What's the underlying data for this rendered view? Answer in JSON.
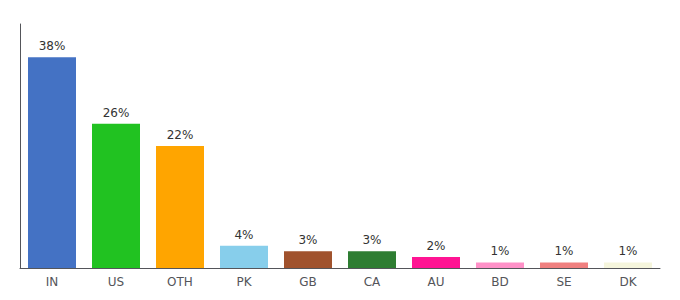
{
  "chart_data": {
    "type": "bar",
    "categories": [
      "IN",
      "US",
      "OTH",
      "PK",
      "GB",
      "CA",
      "AU",
      "BD",
      "SE",
      "DK"
    ],
    "values": [
      38,
      26,
      22,
      4,
      3,
      3,
      2,
      1,
      1,
      1
    ],
    "value_labels": [
      "38%",
      "26%",
      "22%",
      "4%",
      "3%",
      "3%",
      "2%",
      "1%",
      "1%",
      "1%"
    ],
    "colors": [
      "#4472C4",
      "#21C221",
      "#FFA500",
      "#87CEEB",
      "#A0522D",
      "#2E7D32",
      "#FF1493",
      "#FF91C8",
      "#F08080",
      "#F5F5DC"
    ],
    "ylim": [
      0,
      44
    ],
    "data_labels": true,
    "tick_labels": "x",
    "grid": false
  }
}
